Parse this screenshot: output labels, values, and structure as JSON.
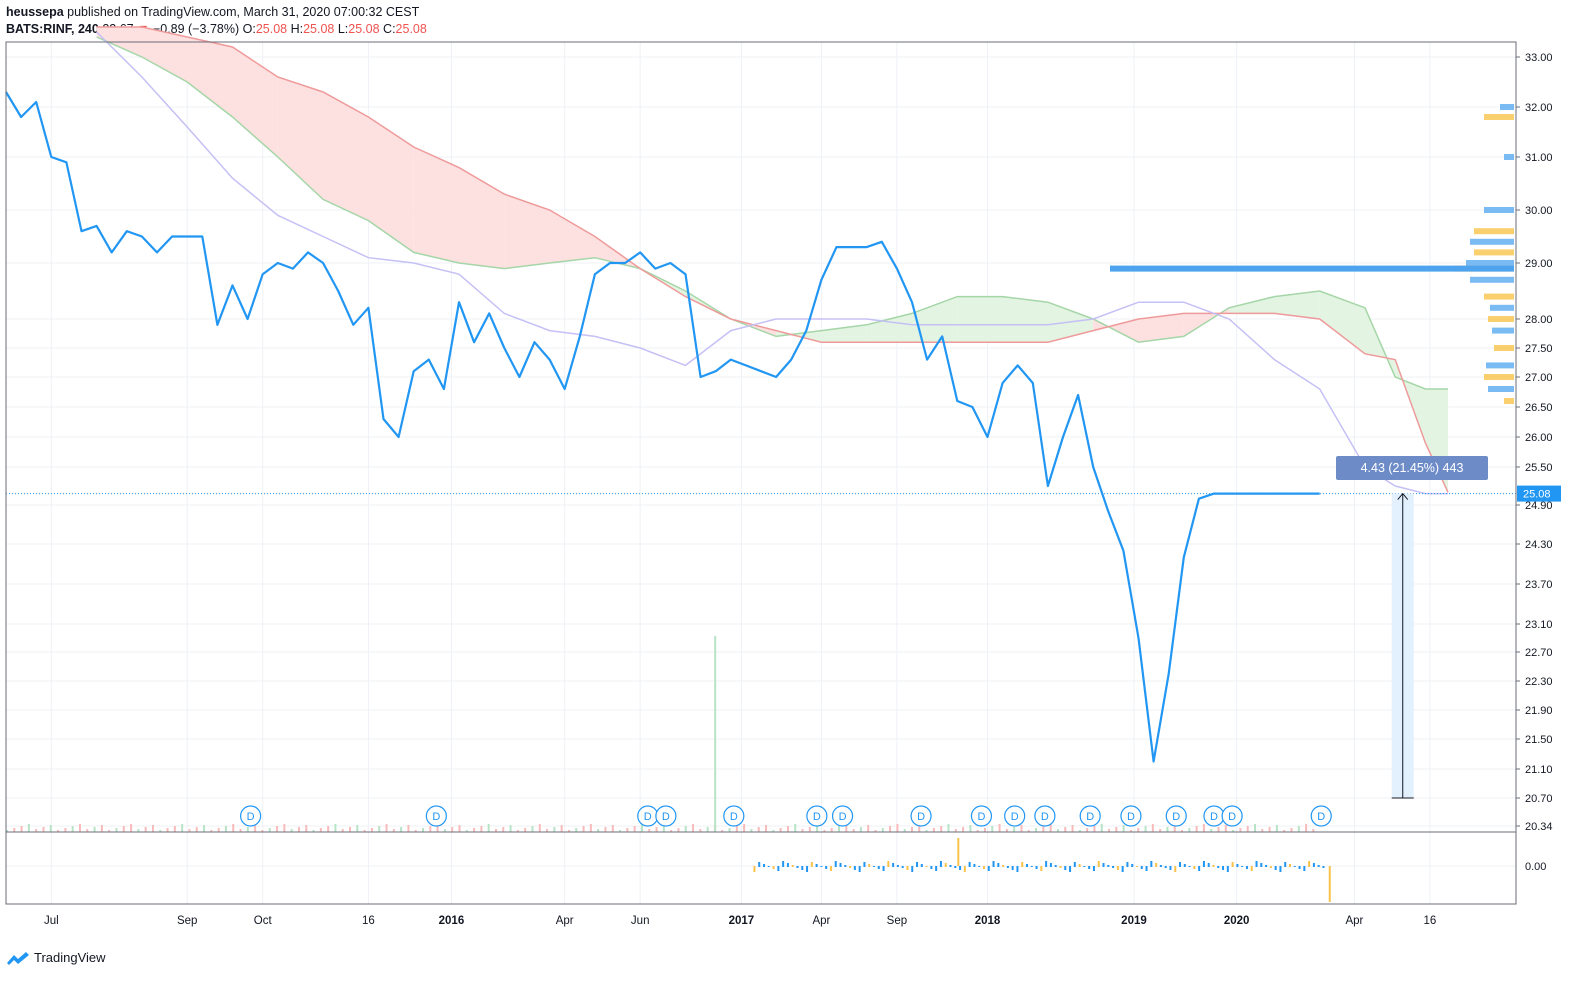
{
  "header": {
    "author": "heussepa",
    "published_text": "published on TradingView.com, March 31, 2020 07:00:32 CEST",
    "symbol": "BATS:RINF, 240",
    "last": "22.67",
    "change": "−0.89 (−3.78%)",
    "o_label": "O:",
    "o": "25.08",
    "h_label": "H:",
    "h": "25.08",
    "l_label": "L:",
    "l": "25.08",
    "c_label": "C:",
    "c": "25.08"
  },
  "footer": {
    "brand": "TradingView"
  },
  "colors": {
    "price_line": "#2196f3",
    "cloud_bull_fill": "#e3f4e3",
    "cloud_bear_fill": "#fde0e0",
    "span_a": "#a5d6a7",
    "span_b": "#ef9a9a",
    "kijun": "#c5c0f5",
    "grid": "#eef1f6",
    "vol_bar": "#2196f3",
    "vol_bar_alt": "#f9c34a"
  },
  "chart_data": {
    "type": "line",
    "symbol": "BATS:RINF",
    "y_axis_ticks": [
      "33.00",
      "32.00",
      "31.00",
      "30.00",
      "29.00",
      "28.00",
      "27.50",
      "27.00",
      "26.50",
      "26.00",
      "25.50",
      "24.90",
      "24.30",
      "23.70",
      "23.10",
      "22.70",
      "22.30",
      "21.90",
      "21.50",
      "21.10",
      "20.70",
      "20.34"
    ],
    "y_axis_ticks_values": [
      33.0,
      32.0,
      31.0,
      30.0,
      29.0,
      28.0,
      27.5,
      27.0,
      26.5,
      26.0,
      25.5,
      24.9,
      24.3,
      23.7,
      23.1,
      22.7,
      22.3,
      21.9,
      21.5,
      21.1,
      20.7,
      20.34
    ],
    "x_axis_ticks": [
      {
        "label": "Jul",
        "bold": false
      },
      {
        "label": "Sep",
        "bold": false
      },
      {
        "label": "Oct",
        "bold": false
      },
      {
        "label": "16",
        "bold": false
      },
      {
        "label": "2016",
        "bold": true
      },
      {
        "label": "Apr",
        "bold": false
      },
      {
        "label": "Jun",
        "bold": false
      },
      {
        "label": "2017",
        "bold": true
      },
      {
        "label": "Apr",
        "bold": false
      },
      {
        "label": "Sep",
        "bold": false
      },
      {
        "label": "2018",
        "bold": true
      },
      {
        "label": "2019",
        "bold": true
      },
      {
        "label": "2020",
        "bold": true
      },
      {
        "label": "Apr",
        "bold": false
      },
      {
        "label": "16",
        "bold": false
      }
    ],
    "x_axis_ticks_t": [
      0.03,
      0.12,
      0.17,
      0.24,
      0.295,
      0.37,
      0.42,
      0.487,
      0.54,
      0.59,
      0.65,
      0.747,
      0.815,
      0.893,
      0.943
    ],
    "last_price_label": "25.08",
    "last_price": 25.08,
    "measure_label": "4.43 (21.45%) 443",
    "measure_from": 20.7,
    "measure_to": 25.08,
    "oscillator_tick": "0.00",
    "dividend_marker": "D",
    "dividend_marker_t": [
      0.162,
      0.285,
      0.425,
      0.437,
      0.482,
      0.537,
      0.554,
      0.606,
      0.646,
      0.668,
      0.688,
      0.718,
      0.745,
      0.775,
      0.8,
      0.812,
      0.871
    ],
    "price_t": [
      0,
      0.01,
      0.02,
      0.03,
      0.04,
      0.05,
      0.06,
      0.07,
      0.08,
      0.09,
      0.1,
      0.11,
      0.12,
      0.13,
      0.14,
      0.15,
      0.16,
      0.17,
      0.18,
      0.19,
      0.2,
      0.21,
      0.22,
      0.23,
      0.24,
      0.25,
      0.26,
      0.27,
      0.28,
      0.29,
      0.3,
      0.31,
      0.32,
      0.33,
      0.34,
      0.35,
      0.36,
      0.37,
      0.38,
      0.39,
      0.4,
      0.41,
      0.42,
      0.43,
      0.44,
      0.45,
      0.46,
      0.47,
      0.48,
      0.49,
      0.5,
      0.51,
      0.52,
      0.53,
      0.54,
      0.55,
      0.56,
      0.57,
      0.58,
      0.59,
      0.6,
      0.61,
      0.62,
      0.63,
      0.64,
      0.65,
      0.66,
      0.67,
      0.68,
      0.69,
      0.7,
      0.71,
      0.72,
      0.73,
      0.74,
      0.75,
      0.76,
      0.77,
      0.78,
      0.79,
      0.8,
      0.81,
      0.82,
      0.83,
      0.84,
      0.845,
      0.85,
      0.855,
      0.86,
      0.865,
      0.87
    ],
    "price": [
      32.3,
      31.8,
      32.1,
      31.0,
      30.9,
      29.6,
      29.7,
      29.2,
      29.6,
      29.5,
      29.2,
      29.5,
      29.5,
      29.5,
      27.9,
      28.6,
      28.0,
      28.8,
      29.0,
      28.9,
      29.2,
      29.0,
      28.5,
      27.9,
      28.2,
      26.3,
      26.0,
      27.1,
      27.3,
      26.8,
      28.3,
      27.6,
      28.1,
      27.5,
      27.0,
      27.6,
      27.3,
      26.8,
      27.7,
      28.8,
      29.0,
      29.0,
      29.2,
      28.9,
      29.0,
      28.8,
      27.0,
      27.1,
      27.3,
      27.2,
      27.1,
      27.0,
      27.3,
      27.8,
      28.7,
      29.3,
      29.3,
      29.3,
      29.4,
      28.9,
      28.3,
      27.3,
      27.7,
      26.6,
      26.5,
      26.0,
      26.9,
      27.2,
      26.9,
      25.2,
      26.0,
      26.7,
      25.5,
      24.8,
      24.2,
      22.9,
      21.2,
      22.4,
      24.1,
      25.0,
      25.08,
      25.08,
      25.08,
      25.08,
      25.08,
      25.08,
      25.08,
      25.08,
      25.08,
      25.08,
      25.08
    ],
    "span_a": [
      33.4,
      33.0,
      32.5,
      31.8,
      31.0,
      30.2,
      29.8,
      29.2,
      29.0,
      28.9,
      29.0,
      29.1,
      28.9,
      28.5,
      28.0,
      27.7,
      27.8,
      27.9,
      28.1,
      28.4,
      28.4,
      28.3,
      28.0,
      27.6,
      27.7,
      28.2,
      28.4,
      28.5,
      28.2,
      27.0,
      26.8,
      26.8
    ],
    "span_b": [
      33.6,
      33.6,
      33.4,
      33.2,
      32.6,
      32.3,
      31.8,
      31.2,
      30.8,
      30.3,
      30.0,
      29.5,
      28.9,
      28.4,
      28.0,
      27.8,
      27.6,
      27.6,
      27.6,
      27.6,
      27.6,
      27.6,
      27.8,
      28.0,
      28.1,
      28.1,
      28.1,
      28.0,
      27.4,
      27.3,
      25.9,
      25.1
    ],
    "kijun": [
      33.5,
      32.6,
      31.6,
      30.6,
      29.9,
      29.5,
      29.1,
      29.0,
      28.8,
      28.1,
      27.8,
      27.7,
      27.5,
      27.2,
      27.8,
      28.0,
      28.0,
      28.0,
      27.9,
      27.9,
      27.9,
      27.9,
      28.0,
      28.3,
      28.3,
      28.0,
      27.3,
      26.8,
      25.5,
      25.2,
      25.08,
      25.08
    ],
    "cloud_t": [
      0.06,
      0.09,
      0.12,
      0.15,
      0.18,
      0.21,
      0.24,
      0.27,
      0.3,
      0.33,
      0.36,
      0.39,
      0.42,
      0.45,
      0.48,
      0.51,
      0.54,
      0.57,
      0.6,
      0.63,
      0.66,
      0.69,
      0.72,
      0.75,
      0.78,
      0.81,
      0.84,
      0.87,
      0.9,
      0.92,
      0.94,
      0.955
    ]
  }
}
